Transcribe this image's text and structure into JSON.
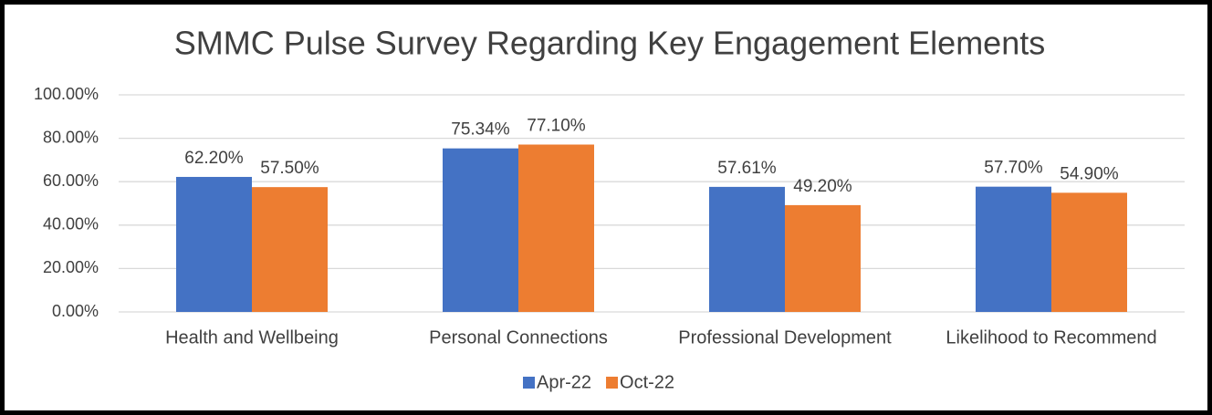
{
  "chart_data": {
    "type": "bar",
    "title": "SMMC Pulse Survey Regarding Key Engagement Elements",
    "categories": [
      "Health and Wellbeing",
      "Personal Connections",
      "Professional Development",
      "Likelihood to Recommend"
    ],
    "series": [
      {
        "name": "Apr-22",
        "color": "#4472c4",
        "values": [
          62.2,
          75.34,
          57.61,
          57.7
        ],
        "value_labels": [
          "62.20%",
          "75.34%",
          "57.61%",
          "57.70%"
        ]
      },
      {
        "name": "Oct-22",
        "color": "#ed7d31",
        "values": [
          57.5,
          77.1,
          49.2,
          54.9
        ],
        "value_labels": [
          "57.50%",
          "77.10%",
          "49.20%",
          "54.90%"
        ]
      }
    ],
    "ylim": [
      0,
      100
    ],
    "yticks": [
      {
        "value": 0,
        "label": "0.00%"
      },
      {
        "value": 20,
        "label": "20.00%"
      },
      {
        "value": 40,
        "label": "40.00%"
      },
      {
        "value": 60,
        "label": "60.00%"
      },
      {
        "value": 80,
        "label": "80.00%"
      },
      {
        "value": 100,
        "label": "100.00%"
      }
    ],
    "grid": true,
    "legend": "bottom"
  }
}
